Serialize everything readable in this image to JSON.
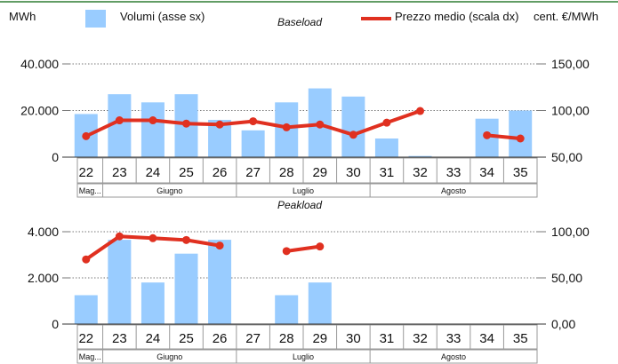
{
  "units": {
    "left": "MWh",
    "right": "cent. €/MWh"
  },
  "legend": {
    "volumes_label": "Volumi (asse sx)",
    "price_label": "Prezzo medio (scala dx)"
  },
  "colors": {
    "bars": "#99ccff",
    "line": "#e03020",
    "frame": "#2e7d32",
    "grid": "#777777",
    "text": "#111111"
  },
  "chart_data": [
    {
      "type": "bar+line",
      "title": "Baseload",
      "categories": [
        "22",
        "23",
        "24",
        "25",
        "26",
        "27",
        "28",
        "29",
        "30",
        "31",
        "32",
        "33",
        "34",
        "35"
      ],
      "series": [
        {
          "name": "Volumi (asse sx)",
          "axis": "left",
          "type": "bar",
          "values": [
            18500,
            27000,
            23500,
            27000,
            16000,
            11500,
            23500,
            29500,
            26000,
            8000,
            500,
            0,
            16500,
            20000
          ]
        },
        {
          "name": "Prezzo medio (scala dx)",
          "axis": "right",
          "type": "line",
          "values": [
            72.5,
            89.5,
            89.5,
            86,
            85,
            88.5,
            82,
            85,
            74,
            87,
            99.5,
            null,
            73.5,
            70
          ]
        }
      ],
      "left_axis": {
        "min": 0,
        "max": 40000,
        "ticks": [
          "0",
          "20.000",
          "40.000"
        ]
      },
      "right_axis": {
        "min": 50,
        "max": 150,
        "ticks": [
          "50,00",
          "100,00",
          "150,00"
        ]
      },
      "months": [
        {
          "label": "Mag...",
          "from": 0,
          "to": 1
        },
        {
          "label": "Giugno",
          "from": 1,
          "to": 5
        },
        {
          "label": "Luglio",
          "from": 5,
          "to": 9
        },
        {
          "label": "Agosto",
          "from": 9,
          "to": 14
        }
      ]
    },
    {
      "type": "bar+line",
      "title": "Peakload",
      "categories": [
        "22",
        "23",
        "24",
        "25",
        "26",
        "27",
        "28",
        "29",
        "30",
        "31",
        "32",
        "33",
        "34",
        "35"
      ],
      "series": [
        {
          "name": "Volumi (asse sx)",
          "axis": "left",
          "type": "bar",
          "values": [
            1250,
            3650,
            1800,
            3050,
            3650,
            0,
            1250,
            1800,
            0,
            0,
            0,
            0,
            0,
            0
          ]
        },
        {
          "name": "Prezzo medio (scala dx)",
          "axis": "right",
          "type": "line",
          "values": [
            70,
            95,
            93,
            91,
            85,
            null,
            79,
            84,
            null,
            null,
            null,
            null,
            null,
            null
          ]
        }
      ],
      "left_axis": {
        "min": 0,
        "max": 4000,
        "ticks": [
          "0",
          "2.000",
          "4.000"
        ]
      },
      "right_axis": {
        "min": 0,
        "max": 100,
        "ticks": [
          "0,00",
          "50,00",
          "100,00"
        ]
      },
      "months": [
        {
          "label": "Mag...",
          "from": 0,
          "to": 1
        },
        {
          "label": "Giugno",
          "from": 1,
          "to": 5
        },
        {
          "label": "Luglio",
          "from": 5,
          "to": 9
        },
        {
          "label": "Agosto",
          "from": 9,
          "to": 14
        }
      ]
    }
  ]
}
